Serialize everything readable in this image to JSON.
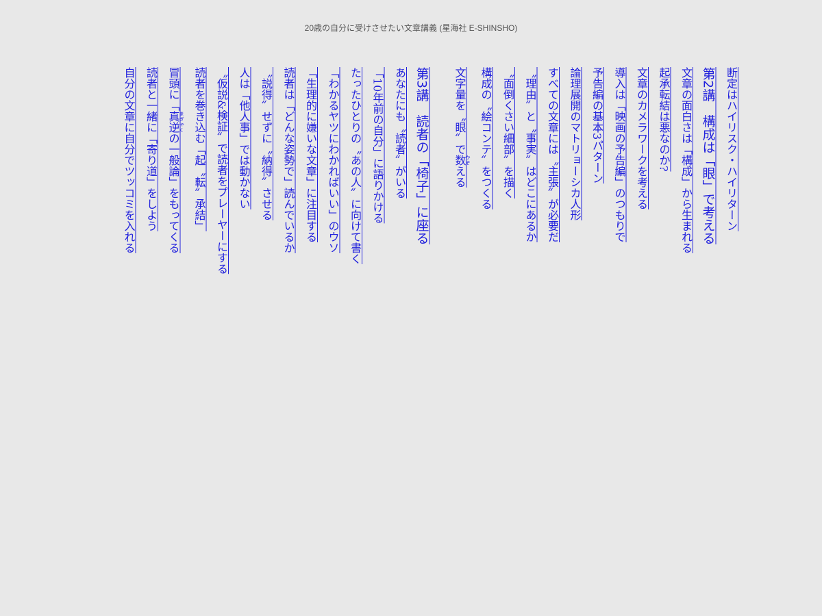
{
  "header": {
    "title": "20歳の自分に受けさせたい文章講義 (星海社 E-SHINSHO)"
  },
  "toc": {
    "i0": "断定はハイリスク・ハイリターン",
    "h2": "第2講　構成は「眼」で考える",
    "i1": "文章の面白さは「構成」から生まれる",
    "i2": "起承転結は悪なのか?",
    "i3": "文章のカメラワークを考える",
    "i4": "導入は「映画の予告編」のつもりで",
    "i5": "予告編の基本3パターン",
    "i6": "論理展開のマトリョーシカ人形",
    "i7": "すべての文章には〝主張〟が必要だ",
    "i8": "〝理由〟と〝事実〟はどこにあるか",
    "i9": "〝面倒くさい細部〟を描く",
    "i10": "構成の〝絵コンテ〟をつくる",
    "i11": {
      "pre": "文字量を〝眼〟で",
      "base": "数",
      "rt": "かぞ",
      "post": "える"
    },
    "h3": "第3講　読者の「椅子」に座る",
    "j1": "あなたにも〝読者〟がいる",
    "j2": "「10年前の自分」に語りかける",
    "j3": "たったひとりの〝あの人〟に向けて書く",
    "j4": "「わかるヤツにわかればいい」のウソ",
    "j5": "「生理的に嫌いな文章」に注目する",
    "j6": "読者は「どんな姿勢で」読んでいるか",
    "j7": "〝説得〟せずに〝納得〟させる",
    "j8": "人は「他人事」では動かない",
    "j9": "〝仮説&検証〟で読者をプレーヤーにする",
    "j10": "読者を巻き込む「起〝転〟承結」",
    "j11": {
      "pre": "冒頭に「",
      "base": "真逆",
      "rt": "まぎゃく",
      "post": "の一般論」をもってくる"
    },
    "j12": "読者と一緒に「寄り道」をしよう",
    "j13": "自分の文章に自分でツッコミを入れる"
  },
  "colors": {
    "link": "#2222dd",
    "background": "#e8e8e8"
  }
}
